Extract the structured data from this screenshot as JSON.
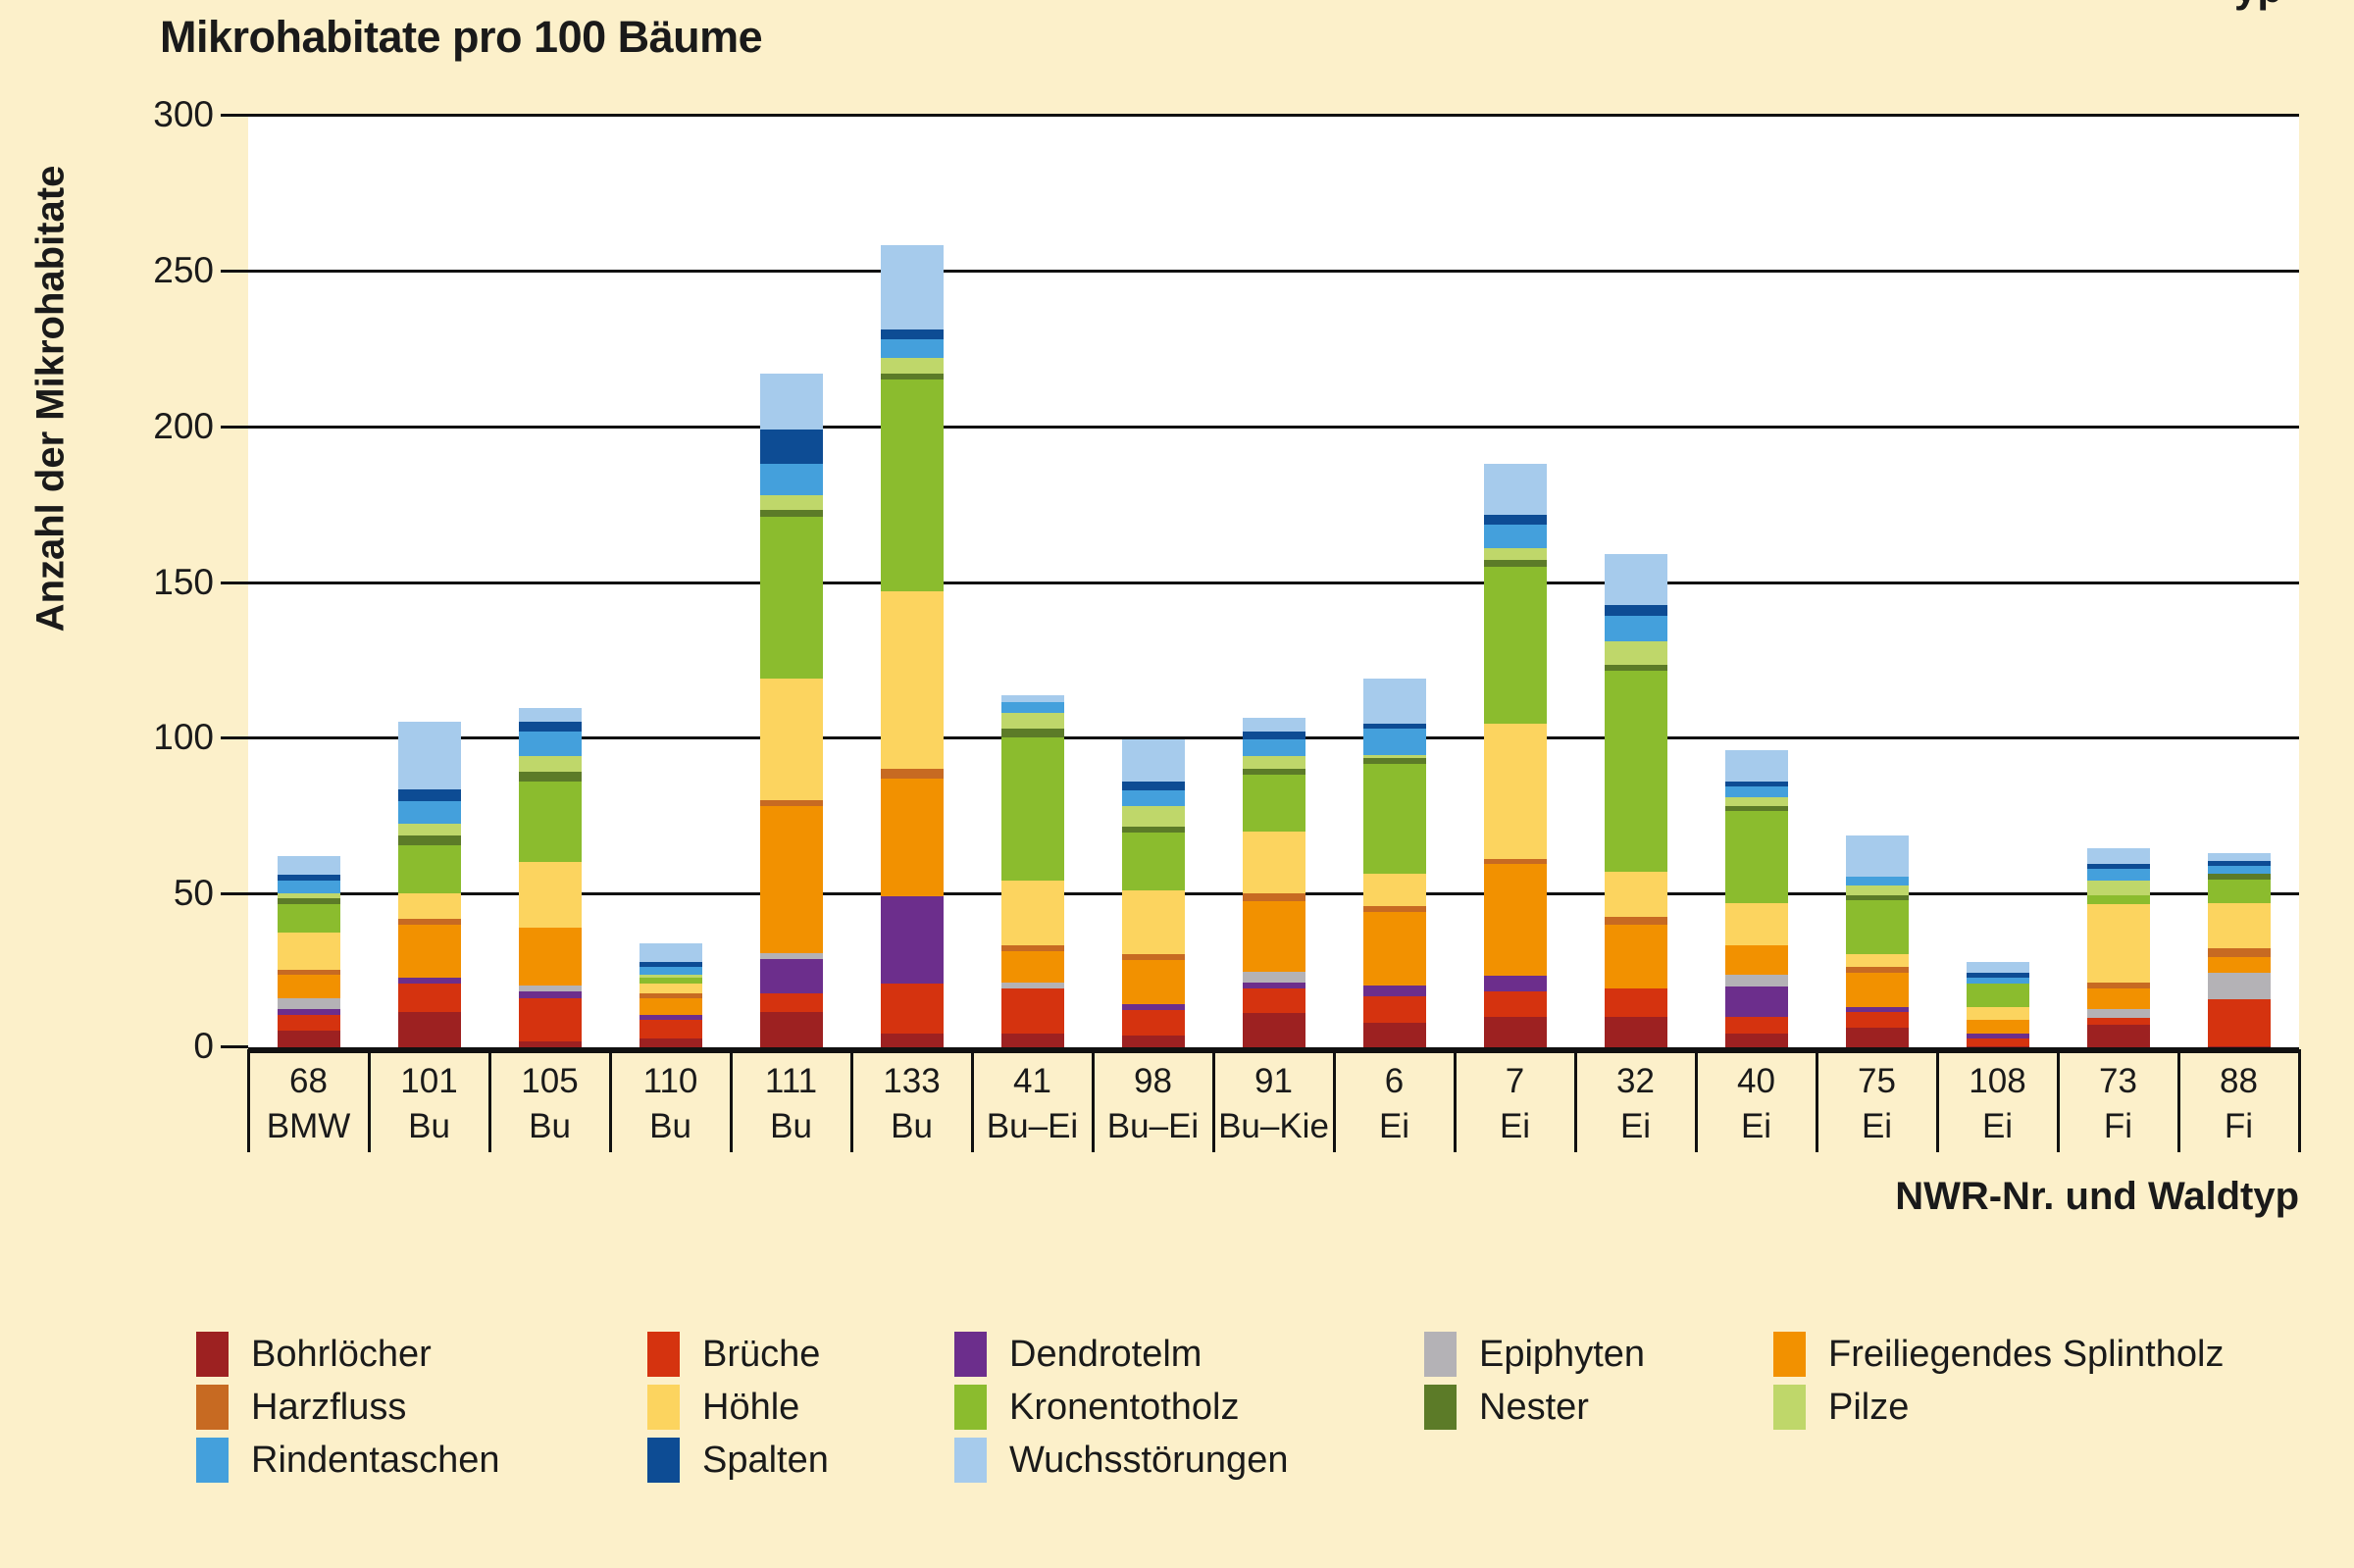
{
  "title": "Mikrohabitate pro 100 Bäume",
  "header_fragment": "yp",
  "y_axis": {
    "label": "Anzahl der Mikrohabitate",
    "ticks": [
      0,
      50,
      100,
      150,
      200,
      250,
      300
    ]
  },
  "x_axis": {
    "label": "NWR-Nr. und Waldtyp"
  },
  "colors": {
    "background": "#FCF0CA",
    "plot_background": "#FFFFFF",
    "axis": "#111111",
    "text": "#1A1A1A"
  },
  "chart_data": {
    "type": "bar",
    "stacked": true,
    "title": "Mikrohabitate pro 100 Bäume",
    "xlabel": "NWR-Nr. und Waldtyp",
    "ylabel": "Anzahl der Mikrohabitate",
    "ylim": [
      0,
      300
    ],
    "ytick_interval": 50,
    "grid": true,
    "legend_position": "bottom",
    "categories": [
      {
        "nwr": "68",
        "waldtyp": "BMW"
      },
      {
        "nwr": "101",
        "waldtyp": "Bu"
      },
      {
        "nwr": "105",
        "waldtyp": "Bu"
      },
      {
        "nwr": "110",
        "waldtyp": "Bu"
      },
      {
        "nwr": "111",
        "waldtyp": "Bu"
      },
      {
        "nwr": "133",
        "waldtyp": "Bu"
      },
      {
        "nwr": "41",
        "waldtyp": "Bu–Ei"
      },
      {
        "nwr": "98",
        "waldtyp": "Bu–Ei"
      },
      {
        "nwr": "91",
        "waldtyp": "Bu–Kie"
      },
      {
        "nwr": "6",
        "waldtyp": "Ei"
      },
      {
        "nwr": "7",
        "waldtyp": "Ei"
      },
      {
        "nwr": "32",
        "waldtyp": "Ei"
      },
      {
        "nwr": "40",
        "waldtyp": "Ei"
      },
      {
        "nwr": "75",
        "waldtyp": "Ei"
      },
      {
        "nwr": "108",
        "waldtyp": "Ei"
      },
      {
        "nwr": "73",
        "waldtyp": "Fi"
      },
      {
        "nwr": "88",
        "waldtyp": "Fi"
      }
    ],
    "series": [
      {
        "name": "Bohrlöcher",
        "color": "#9D2121",
        "values": [
          6,
          12,
          2.5,
          3.5,
          12,
          5,
          5,
          4.5,
          11.5,
          8.5,
          10.5,
          10.5,
          5,
          7,
          1,
          8,
          1
        ]
      },
      {
        "name": "Brüche",
        "color": "#D5330F",
        "values": [
          5,
          9,
          14,
          6,
          6,
          16,
          14.5,
          8,
          8,
          8.5,
          8,
          9,
          5.5,
          5,
          2.5,
          2,
          15
        ]
      },
      {
        "name": "Dendrotelm",
        "color": "#6C2E8C",
        "values": [
          2,
          2,
          2,
          1.5,
          11,
          28,
          0,
          2,
          2,
          3.5,
          5,
          0,
          9.5,
          1.5,
          1.5,
          0,
          0
        ]
      },
      {
        "name": "Epiphyten",
        "color": "#B4B2B6",
        "values": [
          3.5,
          0,
          2,
          0,
          2,
          0,
          2,
          0,
          3.5,
          0,
          0,
          0,
          4,
          0,
          0,
          3,
          8.5
        ]
      },
      {
        "name": "Freiliegendes Splintholz",
        "color": "#F29100",
        "values": [
          7.5,
          17,
          18.5,
          5.5,
          47,
          38,
          10,
          14,
          22.5,
          23.5,
          36,
          20.5,
          9.5,
          11,
          4.5,
          6.5,
          5
        ]
      },
      {
        "name": "Harzfluss",
        "color": "#C76A22",
        "values": [
          1.5,
          2,
          0,
          1.5,
          2,
          3,
          2,
          2,
          2.5,
          2,
          1.5,
          2.5,
          0,
          2,
          0,
          2,
          3
        ]
      },
      {
        "name": "Höhle",
        "color": "#FCD45F",
        "values": [
          12,
          8,
          21,
          3,
          39,
          57,
          20.5,
          20.5,
          20,
          10.5,
          43.5,
          14.5,
          13.5,
          4,
          4,
          25,
          14.5
        ]
      },
      {
        "name": "Kronentotholz",
        "color": "#8BBC2E",
        "values": [
          9,
          15.5,
          26,
          2,
          52,
          68,
          46,
          18.5,
          18,
          35,
          50.5,
          64.5,
          29.5,
          17.5,
          7.5,
          3,
          7.5
        ]
      },
      {
        "name": "Nester",
        "color": "#5C7B28",
        "values": [
          2,
          3,
          3,
          0,
          2,
          2,
          3,
          2,
          2,
          2,
          2,
          2,
          1.5,
          1.5,
          0,
          0,
          2
        ]
      },
      {
        "name": "Pilze",
        "color": "#BFD76A",
        "values": [
          1.5,
          4,
          5,
          1,
          5,
          5,
          5,
          6.5,
          4,
          1,
          4,
          7.5,
          3,
          3,
          0,
          4.5,
          0
        ]
      },
      {
        "name": "Rindentaschen",
        "color": "#44A0DC",
        "values": [
          4,
          7,
          8,
          2.5,
          10,
          6,
          3.5,
          5,
          5.5,
          8.5,
          7.5,
          8,
          3.5,
          3,
          2,
          4,
          2.5
        ]
      },
      {
        "name": "Spalten",
        "color": "#0D4C94",
        "values": [
          2,
          4,
          3,
          1.5,
          11,
          3,
          0,
          3,
          2.5,
          1.5,
          3,
          3.5,
          1.5,
          0,
          1.5,
          1.5,
          1.5
        ]
      },
      {
        "name": "Wuchsstörungen",
        "color": "#A6CBEC",
        "values": [
          6,
          21.5,
          4.5,
          6,
          18,
          27,
          2,
          13.5,
          4.5,
          14.5,
          16.5,
          16.5,
          10,
          13,
          3.5,
          5,
          2.5
        ]
      }
    ]
  }
}
